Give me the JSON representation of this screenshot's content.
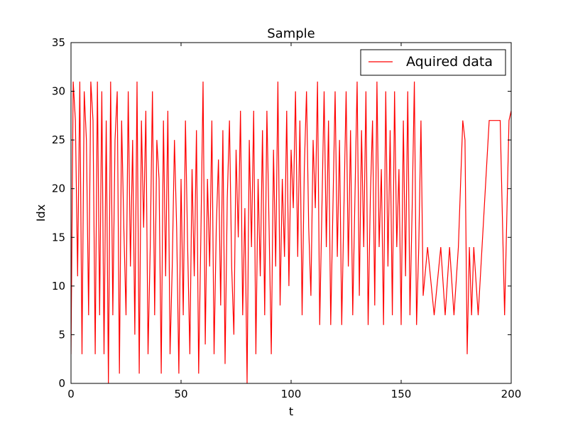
{
  "chart_data": {
    "type": "line",
    "title": "Sample",
    "xlabel": "t",
    "ylabel": "Idx",
    "xlim": [
      0,
      200
    ],
    "ylim": [
      0,
      35
    ],
    "xticks": [
      0,
      50,
      100,
      150,
      200
    ],
    "yticks": [
      0,
      5,
      10,
      15,
      20,
      25,
      30,
      35
    ],
    "grid": false,
    "legend_position": "top-right",
    "color": "#ff0000",
    "series": [
      {
        "name": "Aquired data",
        "x": [
          0,
          1,
          2,
          3,
          4,
          5,
          6,
          7,
          8,
          9,
          10,
          11,
          12,
          13,
          14,
          15,
          16,
          17,
          18,
          19,
          20,
          21,
          22,
          23,
          24,
          25,
          26,
          27,
          28,
          29,
          30,
          31,
          32,
          33,
          34,
          35,
          36,
          37,
          38,
          39,
          40,
          41,
          42,
          43,
          44,
          45,
          46,
          47,
          48,
          49,
          50,
          51,
          52,
          53,
          54,
          55,
          56,
          57,
          58,
          59,
          60,
          61,
          62,
          63,
          64,
          65,
          66,
          67,
          68,
          69,
          70,
          71,
          72,
          73,
          74,
          75,
          76,
          77,
          78,
          79,
          80,
          81,
          82,
          83,
          84,
          85,
          86,
          87,
          88,
          89,
          90,
          91,
          92,
          93,
          94,
          95,
          96,
          97,
          98,
          99,
          100,
          101,
          102,
          103,
          104,
          105,
          106,
          107,
          108,
          109,
          110,
          111,
          112,
          113,
          114,
          115,
          116,
          117,
          118,
          119,
          120,
          121,
          122,
          123,
          124,
          125,
          126,
          127,
          128,
          129,
          130,
          131,
          132,
          133,
          134,
          135,
          136,
          137,
          138,
          139,
          140,
          141,
          142,
          143,
          144,
          145,
          146,
          147,
          148,
          149,
          150,
          151,
          152,
          153,
          154,
          155,
          156,
          157,
          158,
          159,
          160,
          162,
          165,
          168,
          170,
          172,
          174,
          176,
          178,
          179,
          180,
          181,
          182,
          183,
          185,
          190,
          195,
          197,
          199,
          200
        ],
        "y": [
          3,
          31,
          27,
          11,
          31,
          3,
          30,
          25,
          7,
          31,
          27,
          3,
          31,
          7,
          30,
          3,
          27,
          0,
          31,
          7,
          25,
          30,
          1,
          27,
          16,
          7,
          30,
          12,
          25,
          5,
          31,
          1,
          27,
          16,
          28,
          3,
          14,
          30,
          7,
          25,
          21,
          1,
          27,
          11,
          28,
          3,
          12,
          25,
          16,
          1,
          21,
          7,
          27,
          14,
          3,
          22,
          11,
          26,
          1,
          15,
          31,
          4,
          21,
          12,
          27,
          3,
          16,
          23,
          8,
          26,
          2,
          19,
          27,
          12,
          5,
          24,
          15,
          28,
          7,
          18,
          0,
          25,
          14,
          28,
          3,
          21,
          11,
          26,
          7,
          28,
          16,
          3,
          24,
          12,
          31,
          8,
          21,
          13,
          28,
          10,
          24,
          18,
          30,
          13,
          27,
          7,
          22,
          30,
          16,
          9,
          25,
          18,
          31,
          6,
          18,
          30,
          14,
          27,
          6,
          18,
          30,
          13,
          25,
          6,
          18,
          30,
          12,
          26,
          7,
          19,
          31,
          9,
          26,
          14,
          30,
          6,
          19,
          27,
          8,
          31,
          14,
          22,
          6,
          30,
          12,
          26,
          7,
          30,
          14,
          22,
          6,
          27,
          11,
          30,
          7,
          18,
          31,
          6,
          14,
          27,
          9,
          14,
          7,
          14,
          7,
          14,
          7,
          14,
          27,
          25,
          3,
          14,
          7,
          14,
          7,
          27,
          27,
          7,
          27,
          28
        ]
      }
    ]
  }
}
